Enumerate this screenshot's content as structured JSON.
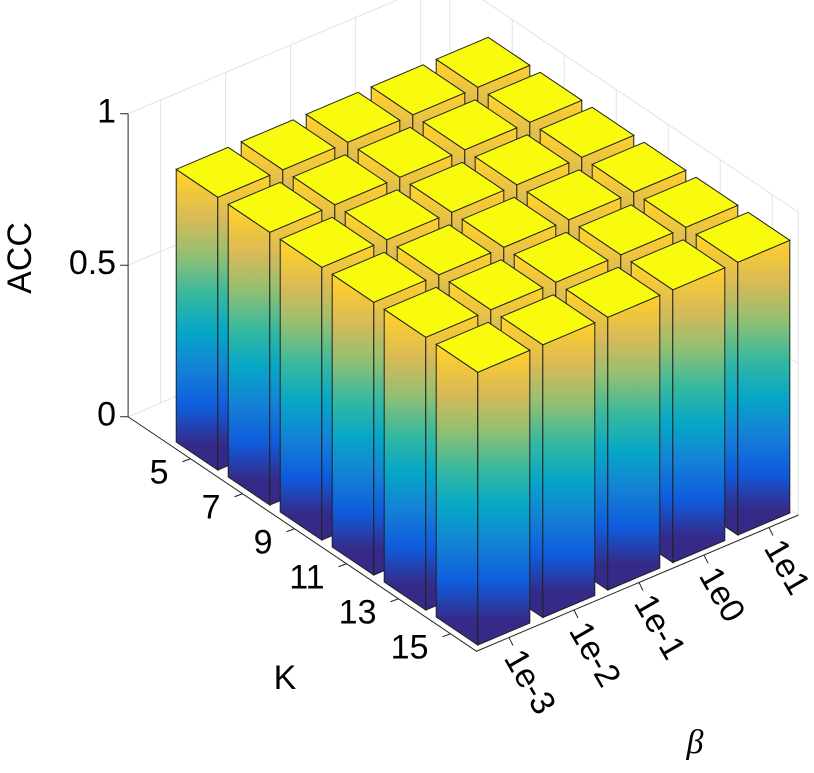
{
  "chart_data": {
    "type": "bar3",
    "zlabel": "ACC",
    "row_label": "K",
    "col_label": "β",
    "rows": [
      "5",
      "7",
      "9",
      "11",
      "13",
      "15"
    ],
    "columns": [
      "1e-3",
      "1e-2",
      "1e-1",
      "1e0",
      "1e1"
    ],
    "values": [
      [
        0.9,
        0.9,
        0.9,
        0.9,
        0.9
      ],
      [
        0.9,
        0.9,
        0.9,
        0.9,
        0.9
      ],
      [
        0.9,
        0.9,
        0.9,
        0.9,
        0.9
      ],
      [
        0.9,
        0.9,
        0.9,
        0.9,
        0.9
      ],
      [
        0.9,
        0.9,
        0.9,
        0.9,
        0.9
      ],
      [
        0.9,
        0.9,
        0.9,
        0.9,
        0.9
      ]
    ],
    "zlim": [
      0,
      1
    ],
    "zticks": [
      0,
      0.5,
      1
    ],
    "grid": true,
    "colormap": [
      "#352a87",
      "#0f5cdd",
      "#1481d6",
      "#06a7c6",
      "#38b99e",
      "#92bf73",
      "#d9ba56",
      "#fcce2e",
      "#f9fb0e"
    ]
  }
}
